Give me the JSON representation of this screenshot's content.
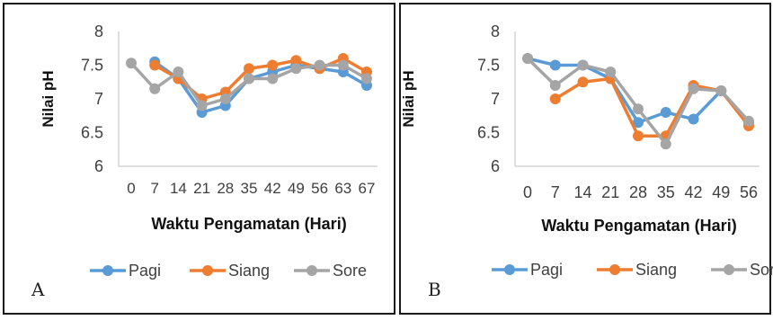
{
  "colors": {
    "pagi": "#5B9BD5",
    "siang": "#ED7D31",
    "sore": "#A5A5A5",
    "axis": "#BFBFBF"
  },
  "panels": [
    {
      "letter": "A"
    },
    {
      "letter": "B"
    }
  ],
  "chart_data": [
    {
      "type": "line",
      "panel_letter": "A",
      "x": [
        0,
        7,
        14,
        21,
        28,
        35,
        42,
        49,
        56,
        63,
        67
      ],
      "x_tick_labels": [
        "0",
        "7",
        "14",
        "21",
        "28",
        "35",
        "42",
        "49",
        "56",
        "63",
        "67"
      ],
      "ylabel": "Nilai pH",
      "xlabel": "Waktu Pengamatan (Hari)",
      "ylim": [
        6,
        8
      ],
      "y_ticks": [
        "6",
        "6.5",
        "7",
        "7.5",
        "8"
      ],
      "grid": false,
      "legend_position": "bottom",
      "series": [
        {
          "name": "Pagi",
          "color_key": "pagi",
          "values": [
            null,
            7.55,
            7.3,
            6.8,
            6.9,
            7.3,
            7.4,
            7.5,
            7.45,
            7.4,
            7.2
          ]
        },
        {
          "name": "Siang",
          "color_key": "siang",
          "values": [
            null,
            7.5,
            7.3,
            7.0,
            7.1,
            7.45,
            7.5,
            7.57,
            7.45,
            7.6,
            7.4
          ]
        },
        {
          "name": "Sore",
          "color_key": "sore",
          "values": [
            7.53,
            7.15,
            7.4,
            6.9,
            7.0,
            7.3,
            7.3,
            7.45,
            7.5,
            7.5,
            7.3
          ]
        }
      ]
    },
    {
      "type": "line",
      "panel_letter": "B",
      "x": [
        0,
        7,
        14,
        21,
        28,
        35,
        42,
        49,
        56
      ],
      "x_tick_labels": [
        "0",
        "7",
        "14",
        "21",
        "28",
        "35",
        "42",
        "49",
        "56"
      ],
      "ylabel": "Nilai pH",
      "xlabel": "Waktu Pengamatan (Hari)",
      "ylim": [
        6,
        8
      ],
      "y_ticks": [
        "6",
        "6.5",
        "7",
        "7.5",
        "8"
      ],
      "grid": false,
      "legend_position": "bottom",
      "series": [
        {
          "name": "Pagi",
          "color_key": "pagi",
          "values": [
            7.6,
            7.5,
            7.5,
            7.3,
            6.65,
            6.8,
            6.7,
            7.12,
            6.65
          ]
        },
        {
          "name": "Siang",
          "color_key": "siang",
          "values": [
            null,
            7.0,
            7.25,
            7.3,
            6.45,
            6.45,
            7.2,
            7.12,
            6.6
          ]
        },
        {
          "name": "Sore",
          "color_key": "sore",
          "values": [
            7.6,
            7.2,
            7.5,
            7.4,
            6.85,
            6.33,
            7.15,
            7.12,
            6.67
          ]
        }
      ]
    }
  ]
}
